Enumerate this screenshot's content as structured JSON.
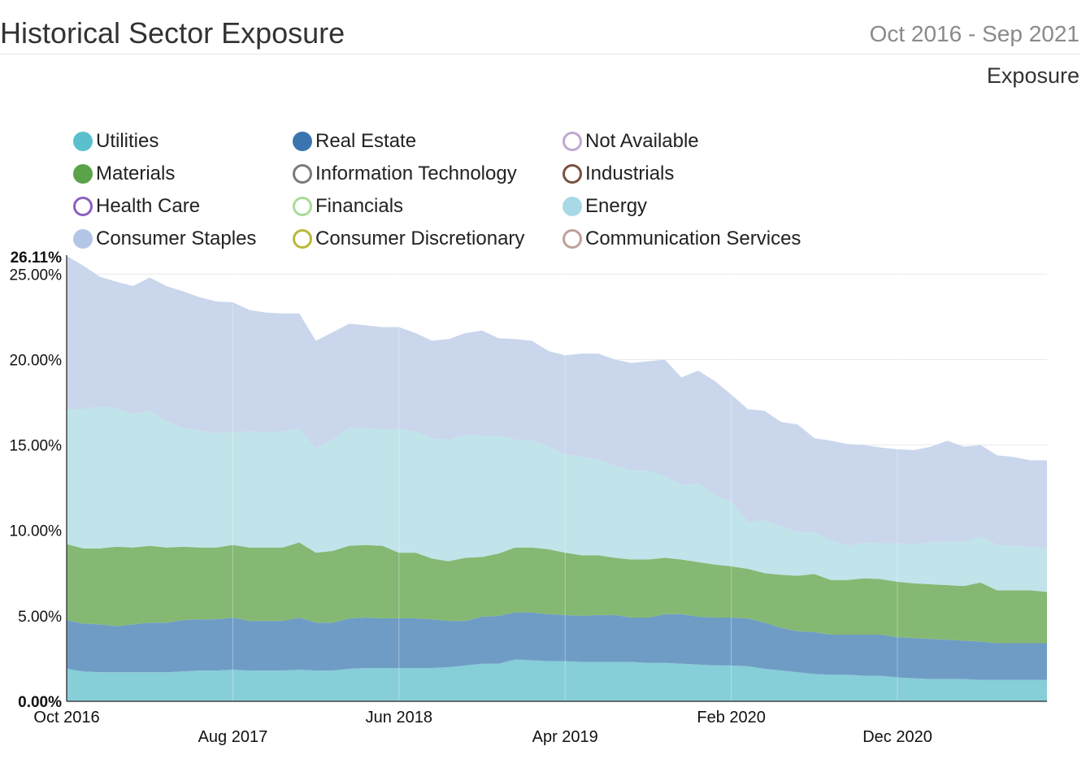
{
  "header": {
    "title": "Historical Sector Exposure",
    "date_range": "Oct 2016 - Sep 2021",
    "subtitle": "Exposure"
  },
  "legend": {
    "items": [
      {
        "label": "Utilities",
        "color": "#5bc0cd",
        "style": "filled"
      },
      {
        "label": "Real Estate",
        "color": "#3a75b0",
        "style": "filled"
      },
      {
        "label": "Not Available",
        "color": "#c0a8d0",
        "style": "ring"
      },
      {
        "label": "Materials",
        "color": "#5aa34a",
        "style": "filled"
      },
      {
        "label": "Information Technology",
        "color": "#7a7a7a",
        "style": "ring"
      },
      {
        "label": "Industrials",
        "color": "#7a5040",
        "style": "ring"
      },
      {
        "label": "Health Care",
        "color": "#8a60c0",
        "style": "ring"
      },
      {
        "label": "Financials",
        "color": "#a8dc98",
        "style": "ring"
      },
      {
        "label": "Energy",
        "color": "#a9d9e6",
        "style": "filled"
      },
      {
        "label": "Consumer Staples",
        "color": "#b3c6e6",
        "style": "filled"
      },
      {
        "label": "Consumer Discretionary",
        "color": "#b8b838",
        "style": "ring"
      },
      {
        "label": "Communication Services",
        "color": "#c0a09a",
        "style": "ring"
      }
    ]
  },
  "chart_data": {
    "type": "area",
    "stacked": true,
    "title": "Historical Sector Exposure",
    "ylim": [
      0,
      26.11
    ],
    "y_ticks": [
      {
        "value": 0,
        "label": "0.00%"
      },
      {
        "value": 5,
        "label": "5.00%"
      },
      {
        "value": 10,
        "label": "10.00%"
      },
      {
        "value": 15,
        "label": "15.00%"
      },
      {
        "value": 20,
        "label": "20.00%"
      },
      {
        "value": 25,
        "label": "25.00%"
      }
    ],
    "y_max_label": "26.11%",
    "x_ticks": [
      {
        "index": 0,
        "label": "Oct 2016",
        "row": 0
      },
      {
        "index": 10,
        "label": "Aug 2017",
        "row": 1
      },
      {
        "index": 20,
        "label": "Jun 2018",
        "row": 0
      },
      {
        "index": 30,
        "label": "Apr 2019",
        "row": 1
      },
      {
        "index": 40,
        "label": "Feb 2020",
        "row": 0
      },
      {
        "index": 50,
        "label": "Dec 2020",
        "row": 1
      }
    ],
    "x_count": 60,
    "series": [
      {
        "name": "Utilities",
        "color": "#86ced8",
        "values": [
          1.9,
          1.75,
          1.7,
          1.7,
          1.7,
          1.7,
          1.7,
          1.75,
          1.8,
          1.8,
          1.85,
          1.8,
          1.8,
          1.8,
          1.85,
          1.8,
          1.8,
          1.9,
          1.95,
          1.95,
          1.95,
          1.95,
          1.95,
          2.0,
          2.1,
          2.2,
          2.2,
          2.45,
          2.4,
          2.35,
          2.35,
          2.3,
          2.3,
          2.3,
          2.3,
          2.25,
          2.25,
          2.2,
          2.15,
          2.1,
          2.1,
          2.05,
          1.9,
          1.8,
          1.7,
          1.6,
          1.55,
          1.55,
          1.5,
          1.5,
          1.4,
          1.35,
          1.3,
          1.3,
          1.3,
          1.25,
          1.25,
          1.25,
          1.25,
          1.25
        ]
      },
      {
        "name": "Real Estate",
        "color": "#6f9cc5",
        "values": [
          2.85,
          2.8,
          2.8,
          2.7,
          2.8,
          2.9,
          2.9,
          3.0,
          3.0,
          3.0,
          3.05,
          2.9,
          2.9,
          2.9,
          3.05,
          2.8,
          2.8,
          2.95,
          2.95,
          2.9,
          2.9,
          2.9,
          2.85,
          2.7,
          2.6,
          2.75,
          2.8,
          2.75,
          2.8,
          2.75,
          2.7,
          2.7,
          2.75,
          2.75,
          2.6,
          2.65,
          2.85,
          2.9,
          2.8,
          2.8,
          2.8,
          2.8,
          2.7,
          2.5,
          2.4,
          2.45,
          2.35,
          2.35,
          2.4,
          2.4,
          2.35,
          2.35,
          2.35,
          2.3,
          2.25,
          2.25,
          2.15,
          2.15,
          2.15,
          2.15
        ]
      },
      {
        "name": "Materials",
        "color": "#85b873",
        "values": [
          4.45,
          4.4,
          4.45,
          4.65,
          4.5,
          4.5,
          4.4,
          4.3,
          4.2,
          4.2,
          4.25,
          4.3,
          4.3,
          4.3,
          4.4,
          4.1,
          4.2,
          4.25,
          4.25,
          4.25,
          3.85,
          3.85,
          3.55,
          3.5,
          3.7,
          3.5,
          3.65,
          3.8,
          3.8,
          3.8,
          3.65,
          3.55,
          3.5,
          3.35,
          3.4,
          3.4,
          3.3,
          3.2,
          3.2,
          3.1,
          3.0,
          2.9,
          2.9,
          3.1,
          3.25,
          3.4,
          3.2,
          3.2,
          3.3,
          3.25,
          3.25,
          3.2,
          3.2,
          3.2,
          3.2,
          3.45,
          3.1,
          3.1,
          3.1,
          3.0
        ]
      },
      {
        "name": "Energy",
        "color": "#c1e3ea",
        "values": [
          7.9,
          8.15,
          8.3,
          8.1,
          7.8,
          7.9,
          7.4,
          6.95,
          6.85,
          6.7,
          6.6,
          6.8,
          6.75,
          6.8,
          6.65,
          6.1,
          6.5,
          6.9,
          6.85,
          6.8,
          7.25,
          7.1,
          7.05,
          7.1,
          7.2,
          7.1,
          6.9,
          6.3,
          6.3,
          6.0,
          5.75,
          5.75,
          5.6,
          5.4,
          5.2,
          5.2,
          4.8,
          4.35,
          4.6,
          4.05,
          3.8,
          2.75,
          3.1,
          2.85,
          2.55,
          2.45,
          2.3,
          2.0,
          2.1,
          2.1,
          2.25,
          2.3,
          2.45,
          2.55,
          2.55,
          2.7,
          2.65,
          2.6,
          2.55,
          2.5
        ]
      },
      {
        "name": "Consumer Staples",
        "color": "#c9d6ec",
        "values": [
          8.96,
          8.4,
          7.6,
          7.4,
          7.5,
          7.8,
          7.9,
          8.0,
          7.8,
          7.7,
          7.6,
          7.1,
          7.0,
          6.9,
          6.75,
          6.3,
          6.3,
          6.1,
          6.0,
          6.0,
          5.95,
          5.75,
          5.7,
          5.9,
          5.95,
          6.15,
          5.7,
          5.9,
          5.8,
          5.6,
          5.8,
          6.05,
          6.2,
          6.2,
          6.3,
          6.4,
          6.8,
          6.3,
          6.6,
          6.7,
          6.25,
          6.6,
          6.4,
          6.1,
          6.3,
          5.5,
          5.85,
          5.95,
          5.7,
          5.6,
          5.5,
          5.5,
          5.6,
          5.9,
          5.6,
          5.35,
          5.25,
          5.2,
          5.05,
          5.2
        ]
      }
    ]
  }
}
